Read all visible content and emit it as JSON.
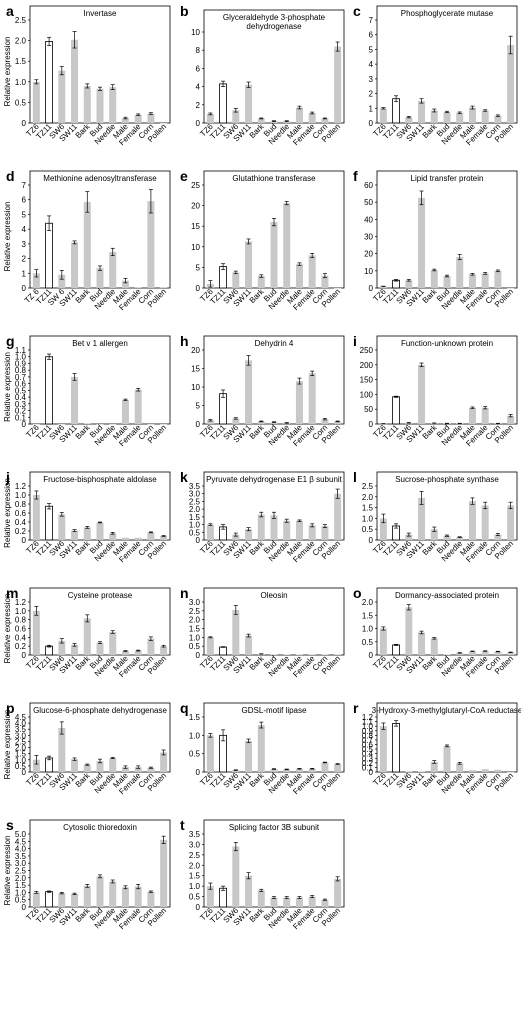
{
  "figure": {
    "categories_default": [
      "TZ6",
      "TZ11",
      "SW6",
      "SW11",
      "Bark",
      "Bud",
      "Needle",
      "Male",
      "Female",
      "Corn",
      "Pollen"
    ],
    "categories_alt": [
      "TZ 6",
      "TZ11",
      "SW 6",
      "SW11",
      "Bark",
      "Bud",
      "Needle",
      "Male",
      "Female",
      "Corn",
      "Pollen"
    ],
    "y_axis_label": "Relative expression",
    "colors": {
      "open_bar": "#ffffff",
      "grey_bar": "#c8c8c8",
      "outline": "#000000"
    }
  },
  "chart_data": [
    {
      "type": "bar",
      "label": "a",
      "title": "Invertase",
      "title_lines": [
        "Invertase"
      ],
      "ylim": [
        0,
        2.5
      ],
      "yticks": [
        "0",
        "0.5",
        "1.0",
        "1.5",
        "2.0",
        "2.5"
      ],
      "ylabel": "Relative expression",
      "cat": "default",
      "values": [
        1.0,
        1.98,
        1.27,
        2.02,
        0.9,
        0.83,
        0.87,
        0.12,
        0.2,
        0.23,
        0.0
      ],
      "err": [
        0.05,
        0.1,
        0.1,
        0.2,
        0.05,
        0.04,
        0.06,
        0.02,
        0.02,
        0.02,
        0.0
      ]
    },
    {
      "type": "bar",
      "label": "b",
      "title": "Glyceraldehyde 3-phosphate dehydrogenase",
      "title_lines": [
        "Glyceraldehyde 3-phosphate",
        "dehydrogenase"
      ],
      "ylim": [
        0,
        10
      ],
      "yticks": [
        "0",
        "2",
        "4",
        "6",
        "8",
        "10"
      ],
      "ylabel": "",
      "cat": "default",
      "values": [
        1.0,
        4.3,
        1.4,
        4.2,
        0.5,
        0.2,
        0.2,
        1.7,
        1.1,
        0.5,
        8.4
      ],
      "err": [
        0.1,
        0.3,
        0.2,
        0.3,
        0.05,
        0.05,
        0.05,
        0.15,
        0.1,
        0.05,
        0.5
      ]
    },
    {
      "type": "bar",
      "label": "c",
      "title": "Phosphoglycerate mutase",
      "title_lines": [
        "Phosphoglycerate mutase"
      ],
      "ylim": [
        0,
        7
      ],
      "yticks": [
        "0",
        "1",
        "2",
        "3",
        "4",
        "5",
        "6",
        "7"
      ],
      "ylabel": "",
      "cat": "default",
      "values": [
        1.0,
        1.65,
        0.4,
        1.5,
        0.85,
        0.75,
        0.7,
        1.05,
        0.85,
        0.5,
        5.3
      ],
      "err": [
        0.05,
        0.2,
        0.05,
        0.15,
        0.1,
        0.05,
        0.05,
        0.1,
        0.05,
        0.05,
        0.6
      ]
    },
    {
      "type": "bar",
      "label": "d",
      "title": "Methionine adenosyltransferase",
      "title_lines": [
        "Methionine adenosyltransferase"
      ],
      "ylim": [
        0,
        7
      ],
      "yticks": [
        "0",
        "1",
        "2",
        "3",
        "4",
        "5",
        "6",
        "7"
      ],
      "ylabel": "Relative expression",
      "cat": "alt",
      "values": [
        1.0,
        4.4,
        0.9,
        3.1,
        5.85,
        1.35,
        2.45,
        0.5,
        0.05,
        5.9,
        0.05
      ],
      "err": [
        0.25,
        0.5,
        0.3,
        0.1,
        0.7,
        0.15,
        0.25,
        0.15,
        0.0,
        0.8,
        0.0
      ]
    },
    {
      "type": "bar",
      "label": "e",
      "title": "Glutathione transferase",
      "title_lines": [
        "Glutathione transferase"
      ],
      "ylim": [
        0,
        25
      ],
      "yticks": [
        "0",
        "5",
        "10",
        "15",
        "20",
        "25"
      ],
      "ylabel": "",
      "cat": "default",
      "values": [
        1.0,
        5.2,
        3.8,
        11.3,
        2.9,
        16.0,
        20.6,
        5.8,
        7.9,
        3.0,
        0.0
      ],
      "err": [
        0.8,
        0.7,
        0.3,
        0.6,
        0.3,
        0.9,
        0.4,
        0.3,
        0.5,
        0.5,
        0.0
      ]
    },
    {
      "type": "bar",
      "label": "f",
      "title": "Lipid transfer protein",
      "title_lines": [
        "Lipid transfer protein"
      ],
      "ylim": [
        0,
        60
      ],
      "yticks": [
        "0",
        "10",
        "20",
        "30",
        "40",
        "50",
        "60"
      ],
      "ylabel": "",
      "cat": "default",
      "values": [
        1.0,
        4.5,
        4.5,
        52.5,
        10.5,
        7.0,
        18.0,
        8.0,
        8.5,
        10.0,
        0.0
      ],
      "err": [
        0.1,
        0.5,
        0.5,
        4.0,
        0.5,
        0.5,
        1.5,
        0.5,
        0.5,
        0.5,
        0.0
      ]
    },
    {
      "type": "bar",
      "label": "g",
      "title": "Bet v 1 allergen",
      "title_lines": [
        "Bet v 1 allergen"
      ],
      "ylim": [
        0,
        1.1
      ],
      "yticks": [
        "0",
        "0.1",
        "0.2",
        "0.3",
        "0.4",
        "0.5",
        "0.6",
        "0.7",
        "0.8",
        "0.9",
        "1.0",
        "1.1"
      ],
      "ylabel": "Relative expression",
      "cat": "default",
      "values": [
        0.0,
        1.0,
        0.0,
        0.7,
        0.01,
        0.0,
        0.0,
        0.36,
        0.51,
        0.0,
        0.0
      ],
      "err": [
        0.0,
        0.04,
        0.0,
        0.05,
        0.0,
        0.0,
        0.0,
        0.01,
        0.02,
        0.0,
        0.0
      ]
    },
    {
      "type": "bar",
      "label": "h",
      "title": "Dehydrin 4",
      "title_lines": [
        "Dehydrin 4"
      ],
      "ylim": [
        0,
        20
      ],
      "yticks": [
        "0",
        "5",
        "10",
        "15",
        "20"
      ],
      "ylabel": "",
      "cat": "default",
      "values": [
        1.0,
        8.2,
        1.5,
        17.2,
        0.7,
        0.5,
        0.3,
        11.6,
        13.7,
        1.3,
        0.7
      ],
      "err": [
        0.2,
        1.0,
        0.2,
        1.3,
        0.1,
        0.1,
        0.1,
        0.8,
        0.6,
        0.2,
        0.1
      ]
    },
    {
      "type": "bar",
      "label": "i",
      "title": "Function-unknown protein",
      "title_lines": [
        "Function-unknown protein"
      ],
      "ylim": [
        0,
        250
      ],
      "yticks": [
        "0",
        "50",
        "100",
        "150",
        "200",
        "250"
      ],
      "ylabel": "",
      "cat": "default",
      "values": [
        1.0,
        92.0,
        4.0,
        200.0,
        3.0,
        2.0,
        2.0,
        55.0,
        55.0,
        2.0,
        28.0
      ],
      "err": [
        0.5,
        2.0,
        1.0,
        6.0,
        0.5,
        0.5,
        0.5,
        2.5,
        4.0,
        0.5,
        4.0
      ]
    },
    {
      "type": "bar",
      "label": "j",
      "title": "Fructose-bisphosphate aldolase",
      "title_lines": [
        "Fructose-bisphosphate aldolase"
      ],
      "ylim": [
        0,
        1.2
      ],
      "yticks": [
        "0",
        "0.2",
        "0.4",
        "0.6",
        "0.8",
        "1.0",
        "1.2"
      ],
      "ylabel": "Relative expression",
      "cat": "default",
      "values": [
        1.0,
        0.75,
        0.57,
        0.21,
        0.28,
        0.39,
        0.15,
        0.05,
        0.05,
        0.17,
        0.09
      ],
      "err": [
        0.09,
        0.06,
        0.04,
        0.02,
        0.02,
        0.01,
        0.02,
        0.0,
        0.0,
        0.01,
        0.01
      ]
    },
    {
      "type": "bar",
      "label": "k",
      "title": "Pyruvate dehydrogenase E1 β subunit",
      "title_lines": [
        "Pyruvate dehydrogenase E1 β subunit"
      ],
      "ylim": [
        0,
        3.5
      ],
      "yticks": [
        "0",
        "0.5",
        "1.0",
        "1.5",
        "2.0",
        "2.5",
        "3.0",
        "3.5"
      ],
      "ylabel": "",
      "cat": "default",
      "values": [
        1.0,
        0.85,
        0.35,
        0.7,
        1.65,
        1.6,
        1.25,
        1.25,
        0.95,
        0.9,
        3.0
      ],
      "err": [
        0.05,
        0.15,
        0.1,
        0.1,
        0.15,
        0.2,
        0.1,
        0.05,
        0.1,
        0.1,
        0.3
      ]
    },
    {
      "type": "bar",
      "label": "l",
      "title": "Sucrose-phosphate synthase",
      "title_lines": [
        "Sucrose-phosphate synthase"
      ],
      "ylim": [
        0,
        2.5
      ],
      "yticks": [
        "0",
        "0.5",
        "1.0",
        "1.5",
        "2.0",
        "2.5"
      ],
      "ylabel": "",
      "cat": "default",
      "values": [
        1.0,
        0.65,
        0.25,
        1.95,
        0.5,
        0.2,
        0.13,
        1.8,
        1.6,
        0.25,
        1.6
      ],
      "err": [
        0.2,
        0.1,
        0.07,
        0.3,
        0.1,
        0.03,
        0.02,
        0.15,
        0.15,
        0.05,
        0.15
      ]
    },
    {
      "type": "bar",
      "label": "m",
      "title": "Cysteine protease",
      "title_lines": [
        "Cysteine protease"
      ],
      "ylim": [
        0,
        1.2
      ],
      "yticks": [
        "0",
        "0.2",
        "0.4",
        "0.6",
        "0.8",
        "1.0",
        "1.2"
      ],
      "ylabel": "Relative expression",
      "cat": "default",
      "values": [
        1.0,
        0.2,
        0.32,
        0.23,
        0.83,
        0.28,
        0.52,
        0.09,
        0.1,
        0.37,
        0.2
      ],
      "err": [
        0.1,
        0.02,
        0.05,
        0.03,
        0.08,
        0.02,
        0.03,
        0.01,
        0.01,
        0.04,
        0.02
      ]
    },
    {
      "type": "bar",
      "label": "n",
      "title": "Oleosin",
      "title_lines": [
        "Oleosin"
      ],
      "ylim": [
        0,
        3.0
      ],
      "yticks": [
        "0",
        "0.5",
        "1.0",
        "1.5",
        "2.0",
        "2.5",
        "3.0"
      ],
      "ylabel": "",
      "cat": "default",
      "values": [
        1.0,
        0.45,
        2.55,
        1.1,
        0.06,
        0.03,
        0.03,
        0.03,
        0.03,
        0.03,
        0.03
      ],
      "err": [
        0.03,
        0.02,
        0.25,
        0.08,
        0.01,
        0.0,
        0.0,
        0.0,
        0.0,
        0.0,
        0.0
      ]
    },
    {
      "type": "bar",
      "label": "o",
      "title": "Dormancy-associated protein",
      "title_lines": [
        "Dormancy-associated protein"
      ],
      "ylim": [
        0,
        2.0
      ],
      "yticks": [
        "0",
        "0.5",
        "1.0",
        "1.5",
        "2.0"
      ],
      "ylabel": "",
      "cat": "default",
      "values": [
        1.0,
        0.38,
        1.8,
        0.85,
        0.63,
        0.02,
        0.08,
        0.14,
        0.15,
        0.13,
        0.1
      ],
      "err": [
        0.06,
        0.02,
        0.1,
        0.05,
        0.03,
        0.0,
        0.01,
        0.01,
        0.01,
        0.01,
        0.01
      ]
    },
    {
      "type": "bar",
      "label": "p",
      "title": "Glucose-6-phosphate dehydrogenase",
      "title_lines": [
        "Glucose-6-phosphate dehydrogenase"
      ],
      "ylim": [
        0,
        4.5
      ],
      "yticks": [
        "0",
        "0.5",
        "1.0",
        "1.5",
        "2.0",
        "2.5",
        "3.0",
        "3.5",
        "4.0",
        "4.5"
      ],
      "ylabel": "Relative expression",
      "cat": "default",
      "values": [
        1.0,
        1.15,
        3.6,
        1.05,
        0.6,
        0.9,
        1.15,
        0.4,
        0.4,
        0.35,
        1.6
      ],
      "err": [
        0.35,
        0.15,
        0.5,
        0.1,
        0.05,
        0.15,
        0.05,
        0.1,
        0.1,
        0.05,
        0.2
      ]
    },
    {
      "type": "bar",
      "label": "q",
      "title": "GDSL-motif lipase",
      "title_lines": [
        "GDSL-motif lipase"
      ],
      "ylim": [
        0,
        1.5
      ],
      "yticks": [
        "0",
        "0.5",
        "1.0",
        "1.5"
      ],
      "ylabel": "",
      "cat": "default",
      "values": [
        1.0,
        1.0,
        0.05,
        0.85,
        1.28,
        0.08,
        0.07,
        0.09,
        0.09,
        0.26,
        0.22
      ],
      "err": [
        0.05,
        0.15,
        0.01,
        0.05,
        0.08,
        0.01,
        0.01,
        0.01,
        0.01,
        0.01,
        0.01
      ]
    },
    {
      "type": "bar",
      "label": "r",
      "title": "3-Hydroxy-3-methylglutaryl-CoA reductase",
      "title_lines": [
        "3-Hydroxy-3-methylglutaryl-CoA reductase"
      ],
      "ylim": [
        0,
        1.2
      ],
      "yticks": [
        "0",
        "0.1",
        "0.2",
        "0.3",
        "0.4",
        "0.5",
        "0.6",
        "0.7",
        "0.8",
        "0.9",
        "1.0",
        "1.1",
        "1.2"
      ],
      "ylabel": "",
      "cat": "default",
      "values": [
        1.0,
        1.06,
        0.01,
        0.01,
        0.22,
        0.57,
        0.19,
        0.04,
        0.06,
        0.05,
        0.0
      ],
      "err": [
        0.07,
        0.06,
        0.0,
        0.0,
        0.03,
        0.02,
        0.02,
        0.0,
        0.0,
        0.0,
        0.0
      ]
    },
    {
      "type": "bar",
      "label": "s",
      "title": "Cytosolic thioredoxin",
      "title_lines": [
        "Cytosolic thioredoxin"
      ],
      "ylim": [
        0,
        5.0
      ],
      "yticks": [
        "0",
        "0.5",
        "1.0",
        "1.5",
        "2.0",
        "2.5",
        "3.0",
        "3.5",
        "4.0",
        "4.5",
        "5.0"
      ],
      "ylabel": "Relative expression",
      "cat": "default",
      "values": [
        1.0,
        1.05,
        0.95,
        0.9,
        1.45,
        2.1,
        1.75,
        1.35,
        1.4,
        1.05,
        4.6
      ],
      "err": [
        0.07,
        0.05,
        0.05,
        0.05,
        0.1,
        0.1,
        0.1,
        0.1,
        0.15,
        0.05,
        0.25
      ]
    },
    {
      "type": "bar",
      "label": "t",
      "title": "Splicing factor 3B subunit",
      "title_lines": [
        "Splicing factor 3B subunit"
      ],
      "ylim": [
        0,
        3.5
      ],
      "yticks": [
        "0",
        "0.5",
        "1.0",
        "1.5",
        "2.0",
        "2.5",
        "3.0",
        "3.5"
      ],
      "ylabel": "",
      "cat": "default",
      "values": [
        1.0,
        0.9,
        2.9,
        1.5,
        0.8,
        0.45,
        0.45,
        0.45,
        0.5,
        0.35,
        1.35
      ],
      "err": [
        0.15,
        0.1,
        0.2,
        0.15,
        0.05,
        0.05,
        0.05,
        0.05,
        0.05,
        0.03,
        0.1
      ]
    }
  ]
}
